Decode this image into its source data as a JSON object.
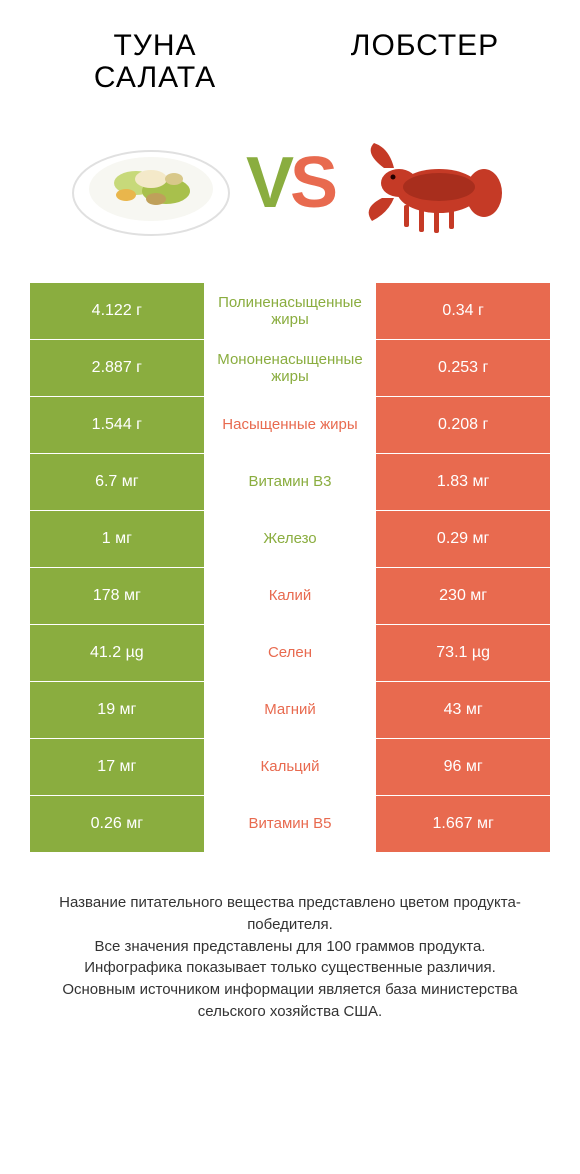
{
  "colors": {
    "green": "#8aad3f",
    "orange": "#e86a4f",
    "bg": "#ffffff",
    "text": "#000000"
  },
  "products": {
    "left": {
      "title_line1": "Туна",
      "title_line2": "салата"
    },
    "right": {
      "title_line1": "Лобстер"
    }
  },
  "vs": {
    "v": "V",
    "s": "S"
  },
  "rows": [
    {
      "left": "4.122 г",
      "mid": "Полиненасыщенные жиры",
      "winner": "left",
      "right": "0.34 г"
    },
    {
      "left": "2.887 г",
      "mid": "Мононенасыщенные жиры",
      "winner": "left",
      "right": "0.253 г"
    },
    {
      "left": "1.544 г",
      "mid": "Насыщенные жиры",
      "winner": "right",
      "right": "0.208 г"
    },
    {
      "left": "6.7 мг",
      "mid": "Витамин B3",
      "winner": "left",
      "right": "1.83 мг"
    },
    {
      "left": "1 мг",
      "mid": "Железо",
      "winner": "left",
      "right": "0.29 мг"
    },
    {
      "left": "178 мг",
      "mid": "Калий",
      "winner": "right",
      "right": "230 мг"
    },
    {
      "left": "41.2 µg",
      "mid": "Селен",
      "winner": "right",
      "right": "73.1 µg"
    },
    {
      "left": "19 мг",
      "mid": "Магний",
      "winner": "right",
      "right": "43 мг"
    },
    {
      "left": "17 мг",
      "mid": "Кальций",
      "winner": "right",
      "right": "96 мг"
    },
    {
      "left": "0.26 мг",
      "mid": "Витамин B5",
      "winner": "right",
      "right": "1.667 мг"
    }
  ],
  "footer": [
    "Название питательного вещества представлено цветом продукта-победителя.",
    "Все значения представлены для 100 граммов продукта.",
    "Инфографика показывает только существенные различия.",
    "Основным источником информации является база министерства сельского хозяйства США."
  ]
}
